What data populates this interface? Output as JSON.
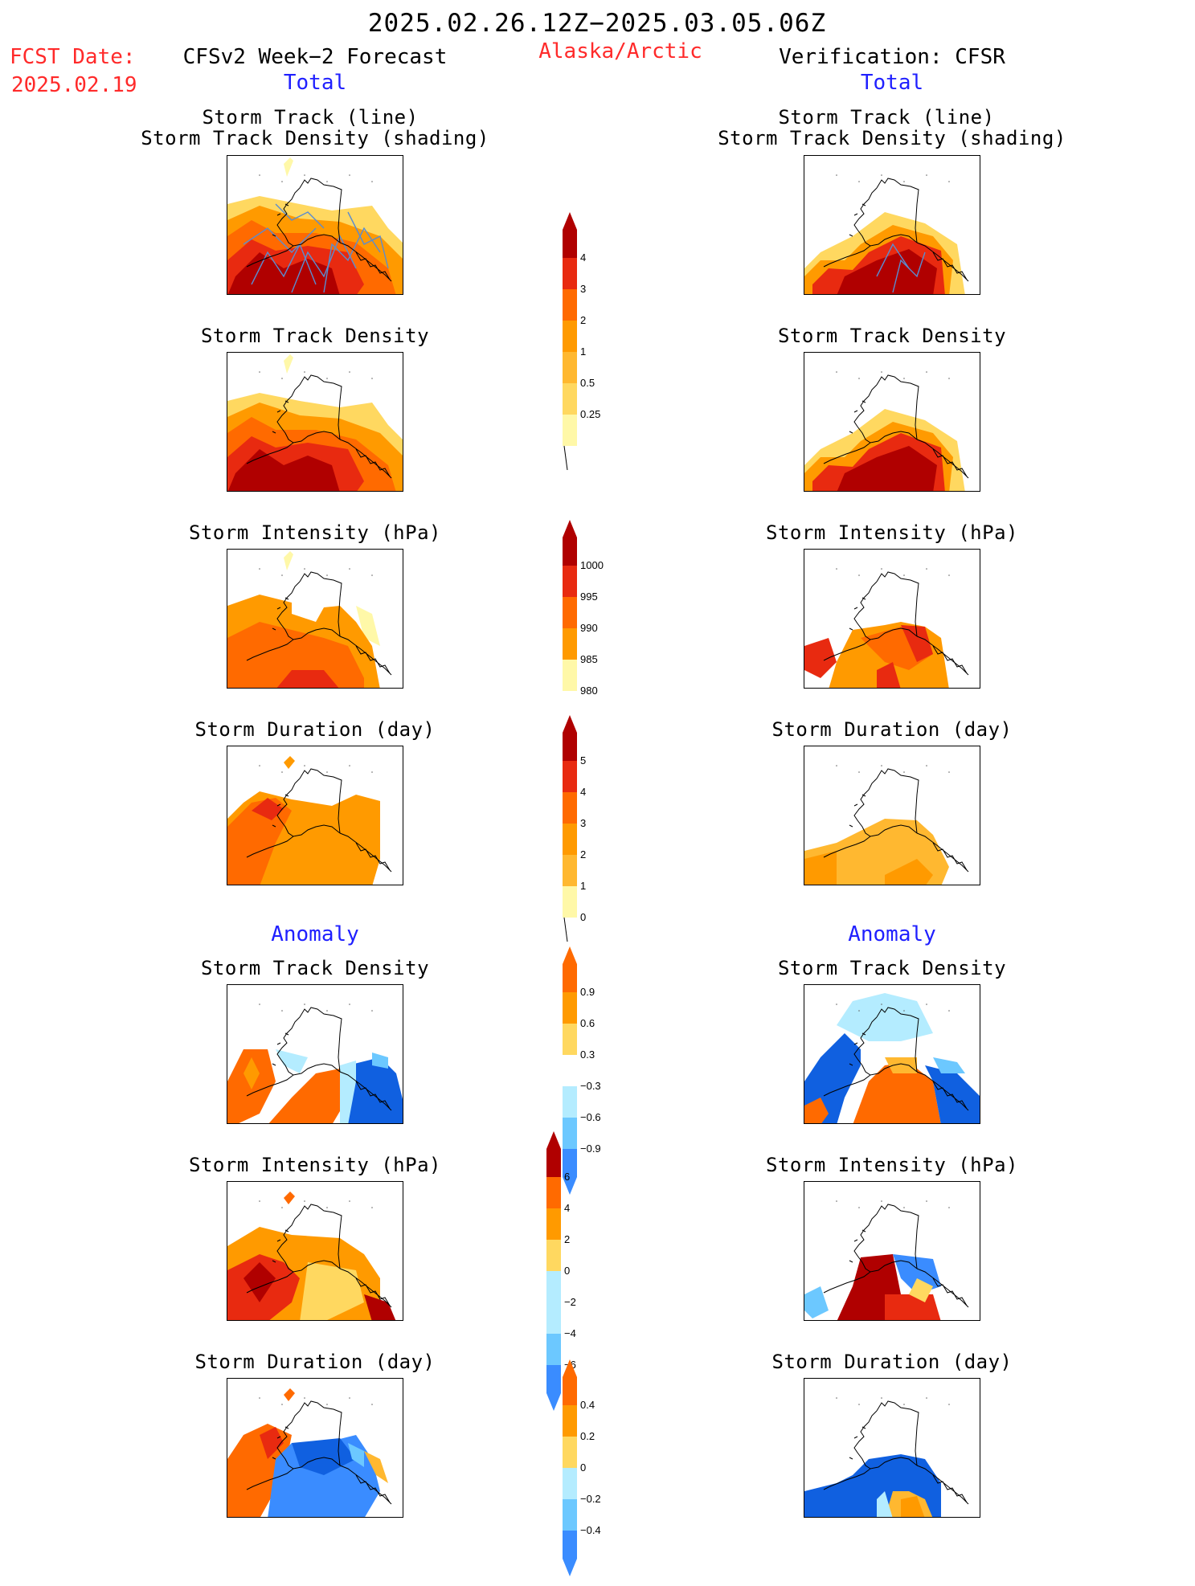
{
  "header": {
    "date_range": "2025.02.26.12Z−2025.03.05.06Z",
    "fcst_label": "FCST Date:",
    "fcst_date": "2025.02.19",
    "region": "Alaska/Arctic",
    "left_column_title": "CFSv2 Week−2 Forecast",
    "right_column_title": "Verification: CFSR",
    "total_label_left": "Total",
    "total_label_right": "Total",
    "anomaly_label_left": "Anomaly",
    "anomaly_label_right": "Anomaly"
  },
  "panel_titles": {
    "track_line": "Storm Track (line)",
    "track_shading": "Storm Track Density (shading)",
    "density": "Storm Track Density",
    "intensity": "Storm Intensity (hPa)",
    "duration": "Storm Duration (day)"
  },
  "colors": {
    "pale_yellow": "#fff8a8",
    "yellow": "#ffd860",
    "light_orange": "#ffb830",
    "orange": "#ff9a00",
    "dark_orange": "#ff6a00",
    "red": "#e82a10",
    "dark_red": "#b00000",
    "pale_blue": "#b4ecff",
    "light_blue": "#6cc8ff",
    "mid_blue": "#3a8cff",
    "blue": "#1060e0",
    "track_line": "#5a8cd0"
  },
  "chart_data": [
    {
      "type": "heatmap",
      "name": "total_density_colorbar",
      "ticks": [
        "4",
        "3",
        "2",
        "1",
        "0.5",
        "0.25"
      ]
    },
    {
      "type": "heatmap",
      "name": "total_intensity_colorbar",
      "ticks": [
        "1000",
        "995",
        "990",
        "985",
        "980"
      ]
    },
    {
      "type": "heatmap",
      "name": "total_duration_colorbar",
      "ticks": [
        "5",
        "4",
        "3",
        "2",
        "1",
        "0"
      ]
    },
    {
      "type": "heatmap",
      "name": "anomaly_density_colorbar",
      "ticks": [
        "0.9",
        "0.6",
        "0.3",
        "−0.3",
        "−0.6",
        "−0.9"
      ]
    },
    {
      "type": "heatmap",
      "name": "anomaly_intensity_colorbar",
      "ticks": [
        "6",
        "4",
        "2",
        "0",
        "−2",
        "−4",
        "−6"
      ]
    },
    {
      "type": "heatmap",
      "name": "anomaly_duration_colorbar",
      "ticks": [
        "0.4",
        "0.2",
        "0",
        "−0.2",
        "−0.4"
      ]
    }
  ]
}
